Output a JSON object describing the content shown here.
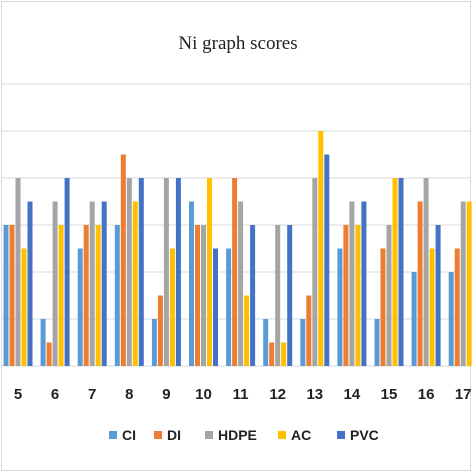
{
  "chart_data": {
    "type": "bar",
    "title": "Ni graph scores",
    "xlabel": "",
    "ylabel": "",
    "categories": [
      "5",
      "6",
      "7",
      "8",
      "9",
      "10",
      "11",
      "12",
      "13",
      "14",
      "15",
      "16",
      "17"
    ],
    "ylim": [
      0,
      6
    ],
    "grid": true,
    "legend_position": "bottom",
    "series": [
      {
        "name": "CI",
        "color": "#5b9bd5",
        "values": [
          3,
          1,
          2.5,
          3,
          1,
          3.5,
          2.5,
          1,
          1,
          2.5,
          1,
          2,
          2
        ]
      },
      {
        "name": "DI",
        "color": "#ed7d31",
        "values": [
          3,
          0.5,
          3,
          4.5,
          1.5,
          3,
          4,
          0.5,
          1.5,
          3,
          2.5,
          3.5,
          2.5
        ]
      },
      {
        "name": "HDPE",
        "color": "#a5a5a5",
        "values": [
          4,
          3.5,
          3.5,
          4,
          4,
          3,
          3.5,
          3,
          4,
          3.5,
          3,
          4,
          3.5
        ]
      },
      {
        "name": "AC",
        "color": "#ffc000",
        "values": [
          2.5,
          3,
          3,
          3.5,
          2.5,
          4,
          1.5,
          0.5,
          5,
          3,
          4,
          2.5,
          3.5
        ]
      },
      {
        "name": "PVC",
        "color": "#4472c4",
        "values": [
          3.5,
          4,
          3.5,
          4,
          4,
          2.5,
          3,
          3,
          4.5,
          3.5,
          4,
          3,
          4
        ]
      }
    ]
  }
}
